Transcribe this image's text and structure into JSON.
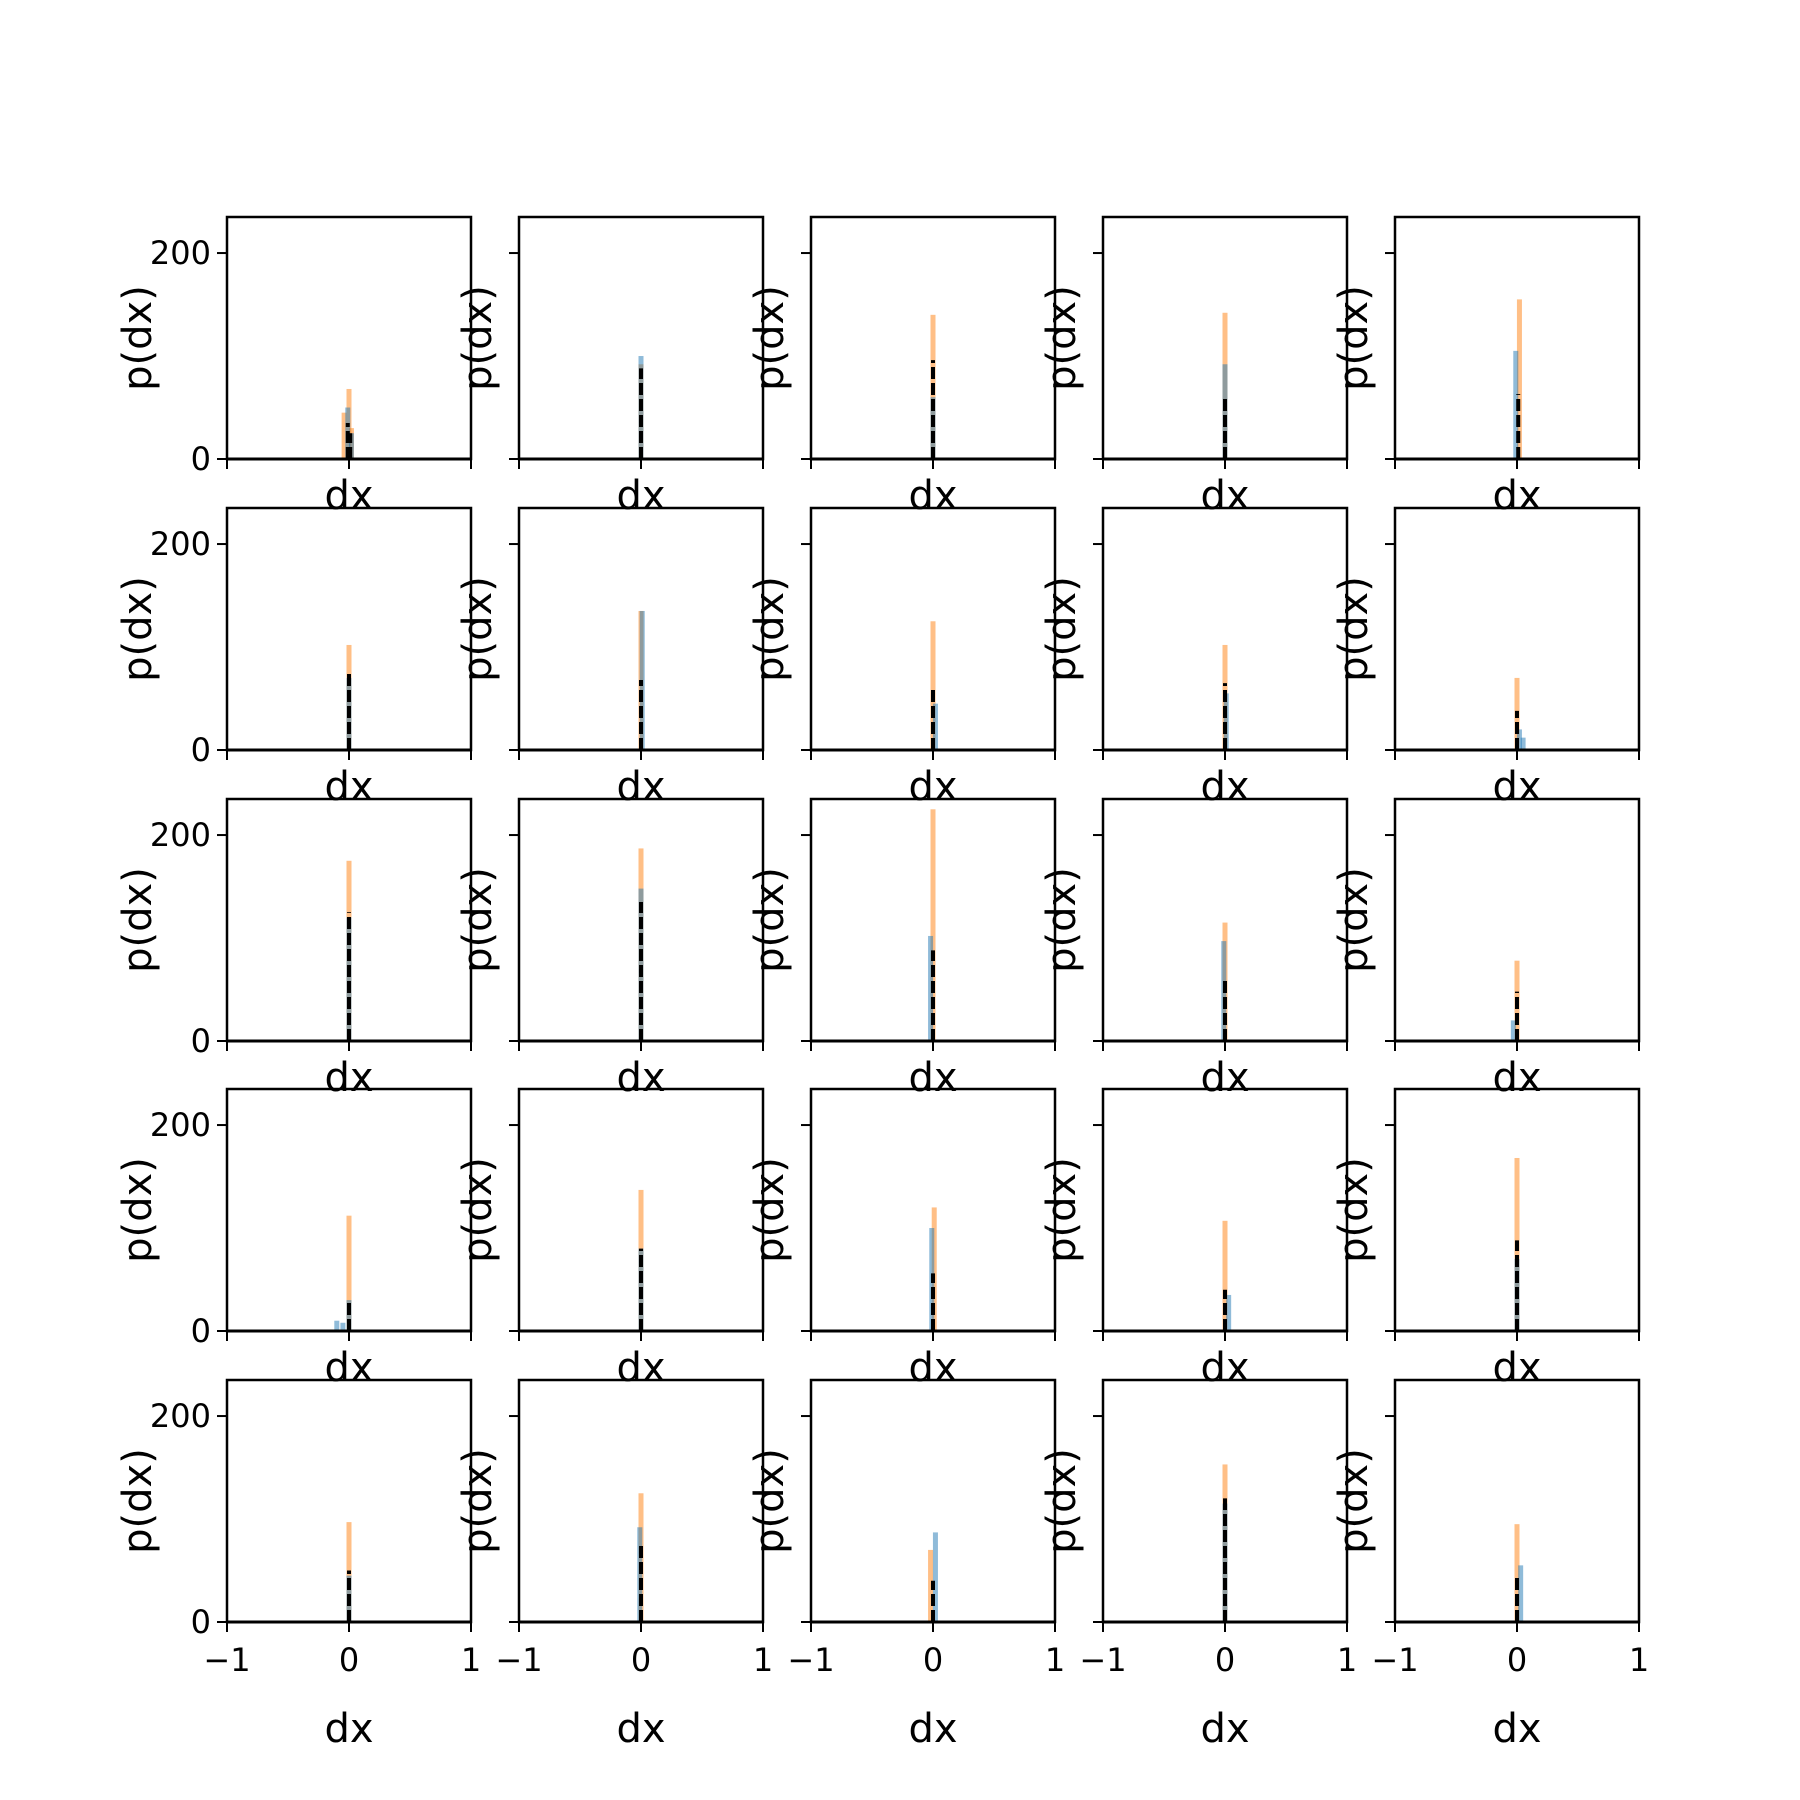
{
  "chart_data": {
    "type": "bar",
    "layout": "5x5 grid of small histogram panels with shared axes",
    "xlabel": "dx",
    "ylabel": "p(dx)",
    "xlim": [
      -1,
      1
    ],
    "ylim": [
      0,
      235
    ],
    "xticks": [
      -1,
      0,
      1
    ],
    "xtick_labels": [
      "−1",
      "0",
      "1"
    ],
    "yticks": [
      0,
      200
    ],
    "ytick_labels": [
      "0",
      "200"
    ],
    "grid": false,
    "legend": "none",
    "colors": {
      "blue_histogram": "#1f77b4",
      "orange_histogram": "#ff7f0e",
      "black_curve": "#000000"
    },
    "panels": [
      {
        "row": 0,
        "col": 0,
        "orange": [
          {
            "x": -0.04,
            "y": 45
          },
          {
            "x": 0.0,
            "y": 68
          },
          {
            "x": 0.02,
            "y": 30
          }
        ],
        "blue": [
          {
            "x": -0.01,
            "y": 50
          },
          {
            "x": 0.02,
            "y": 25
          }
        ],
        "black": [
          {
            "x": -0.01,
            "y": 35
          },
          {
            "x": 0.01,
            "y": 25
          }
        ]
      },
      {
        "row": 0,
        "col": 1,
        "orange": [
          {
            "x": 0.0,
            "y": 92
          }
        ],
        "blue": [
          {
            "x": 0.0,
            "y": 100
          }
        ],
        "black": [
          {
            "x": 0.0,
            "y": 88
          }
        ]
      },
      {
        "row": 0,
        "col": 2,
        "orange": [
          {
            "x": 0.0,
            "y": 140
          }
        ],
        "blue": [
          {
            "x": 0.0,
            "y": 60
          }
        ],
        "black": [
          {
            "x": 0.0,
            "y": 96
          }
        ]
      },
      {
        "row": 0,
        "col": 3,
        "orange": [
          {
            "x": 0.0,
            "y": 142
          }
        ],
        "blue": [
          {
            "x": 0.0,
            "y": 92
          }
        ],
        "black": [
          {
            "x": 0.0,
            "y": 60
          }
        ]
      },
      {
        "row": 0,
        "col": 4,
        "orange": [
          {
            "x": 0.02,
            "y": 155
          }
        ],
        "blue": [
          {
            "x": -0.01,
            "y": 105
          }
        ],
        "black": [
          {
            "x": 0.01,
            "y": 63
          }
        ]
      },
      {
        "row": 1,
        "col": 0,
        "orange": [
          {
            "x": 0.0,
            "y": 102
          }
        ],
        "blue": [
          {
            "x": 0.0,
            "y": 70
          }
        ],
        "black": [
          {
            "x": 0.0,
            "y": 75
          }
        ]
      },
      {
        "row": 1,
        "col": 1,
        "orange": [
          {
            "x": 0.0,
            "y": 135
          }
        ],
        "blue": [
          {
            "x": 0.01,
            "y": 135
          }
        ],
        "black": [
          {
            "x": 0.0,
            "y": 68
          }
        ]
      },
      {
        "row": 1,
        "col": 2,
        "orange": [
          {
            "x": 0.0,
            "y": 125
          }
        ],
        "blue": [
          {
            "x": 0.02,
            "y": 45
          }
        ],
        "black": [
          {
            "x": 0.0,
            "y": 62
          }
        ]
      },
      {
        "row": 1,
        "col": 3,
        "orange": [
          {
            "x": 0.0,
            "y": 102
          }
        ],
        "blue": [
          {
            "x": 0.01,
            "y": 55
          }
        ],
        "black": [
          {
            "x": 0.0,
            "y": 65
          }
        ]
      },
      {
        "row": 1,
        "col": 4,
        "orange": [
          {
            "x": 0.0,
            "y": 70
          }
        ],
        "blue": [
          {
            "x": 0.05,
            "y": 12
          },
          {
            "x": 0.02,
            "y": 20
          }
        ],
        "black": [
          {
            "x": 0.0,
            "y": 38
          }
        ]
      },
      {
        "row": 2,
        "col": 0,
        "orange": [
          {
            "x": 0.0,
            "y": 175
          }
        ],
        "blue": [
          {
            "x": 0.0,
            "y": 120
          }
        ],
        "black": [
          {
            "x": 0.0,
            "y": 125
          }
        ]
      },
      {
        "row": 2,
        "col": 1,
        "orange": [
          {
            "x": 0.0,
            "y": 187
          }
        ],
        "blue": [
          {
            "x": 0.0,
            "y": 148
          }
        ],
        "black": [
          {
            "x": 0.0,
            "y": 135
          }
        ]
      },
      {
        "row": 2,
        "col": 2,
        "orange": [
          {
            "x": 0.0,
            "y": 225
          }
        ],
        "blue": [
          {
            "x": -0.02,
            "y": 102
          }
        ],
        "black": [
          {
            "x": 0.0,
            "y": 88
          }
        ]
      },
      {
        "row": 2,
        "col": 3,
        "orange": [
          {
            "x": 0.0,
            "y": 115
          }
        ],
        "blue": [
          {
            "x": -0.01,
            "y": 97
          }
        ],
        "black": [
          {
            "x": 0.0,
            "y": 60
          }
        ]
      },
      {
        "row": 2,
        "col": 4,
        "orange": [
          {
            "x": 0.0,
            "y": 78
          }
        ],
        "blue": [
          {
            "x": -0.03,
            "y": 20
          }
        ],
        "black": [
          {
            "x": 0.0,
            "y": 48
          }
        ]
      },
      {
        "row": 3,
        "col": 0,
        "orange": [
          {
            "x": 0.0,
            "y": 112
          }
        ],
        "blue": [
          {
            "x": -0.1,
            "y": 10
          },
          {
            "x": -0.05,
            "y": 8
          },
          {
            "x": 0.0,
            "y": 30
          }
        ],
        "black": [
          {
            "x": 0.0,
            "y": 30
          }
        ]
      },
      {
        "row": 3,
        "col": 1,
        "orange": [
          {
            "x": 0.0,
            "y": 137
          }
        ],
        "blue": [
          {
            "x": 0.0,
            "y": 80
          }
        ],
        "black": [
          {
            "x": 0.0,
            "y": 80
          }
        ]
      },
      {
        "row": 3,
        "col": 2,
        "orange": [
          {
            "x": 0.01,
            "y": 120
          }
        ],
        "blue": [
          {
            "x": -0.01,
            "y": 100
          }
        ],
        "black": [
          {
            "x": 0.0,
            "y": 56
          }
        ]
      },
      {
        "row": 3,
        "col": 3,
        "orange": [
          {
            "x": 0.0,
            "y": 107
          }
        ],
        "blue": [
          {
            "x": 0.03,
            "y": 35
          }
        ],
        "black": [
          {
            "x": 0.0,
            "y": 40
          }
        ]
      },
      {
        "row": 3,
        "col": 4,
        "orange": [
          {
            "x": 0.0,
            "y": 168
          }
        ],
        "blue": [
          {
            "x": 0.0,
            "y": 70
          }
        ],
        "black": [
          {
            "x": 0.0,
            "y": 88
          }
        ]
      },
      {
        "row": 4,
        "col": 0,
        "orange": [
          {
            "x": 0.0,
            "y": 97
          }
        ],
        "blue": [
          {
            "x": 0.0,
            "y": 45
          }
        ],
        "black": [
          {
            "x": 0.0,
            "y": 50
          }
        ]
      },
      {
        "row": 4,
        "col": 1,
        "orange": [
          {
            "x": 0.0,
            "y": 125
          }
        ],
        "blue": [
          {
            "x": -0.01,
            "y": 92
          }
        ],
        "black": [
          {
            "x": 0.0,
            "y": 75
          }
        ]
      },
      {
        "row": 4,
        "col": 2,
        "orange": [
          {
            "x": -0.02,
            "y": 70
          }
        ],
        "blue": [
          {
            "x": 0.02,
            "y": 87
          }
        ],
        "black": [
          {
            "x": 0.0,
            "y": 40
          }
        ]
      },
      {
        "row": 4,
        "col": 3,
        "orange": [
          {
            "x": 0.0,
            "y": 153
          }
        ],
        "blue": [
          {
            "x": 0.0,
            "y": 115
          }
        ],
        "black": [
          {
            "x": 0.0,
            "y": 120
          }
        ]
      },
      {
        "row": 4,
        "col": 4,
        "orange": [
          {
            "x": 0.0,
            "y": 95
          }
        ],
        "blue": [
          {
            "x": 0.03,
            "y": 55
          }
        ],
        "black": [
          {
            "x": 0.0,
            "y": 45
          }
        ]
      }
    ]
  }
}
